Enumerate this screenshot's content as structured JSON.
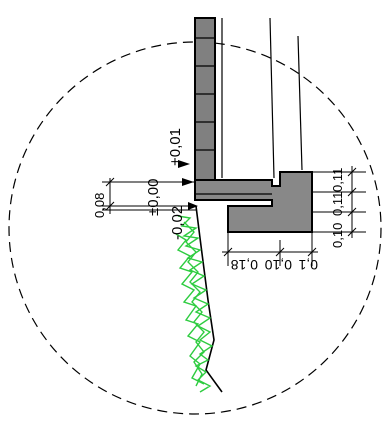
{
  "drawing": {
    "levels": {
      "upper": "+0,01",
      "zero": "±0,00",
      "lower": "-0,02"
    },
    "dimensions": {
      "left_height": "0,08",
      "right_heights": [
        "0,11",
        "0,11",
        "0,10"
      ],
      "bottom_widths": [
        "0,18",
        "0,10",
        "0,1"
      ]
    },
    "colors": {
      "wall_fill": "#808080",
      "sill_fill": "#888888",
      "grass": "#2ecc40",
      "line": "#000000"
    }
  }
}
